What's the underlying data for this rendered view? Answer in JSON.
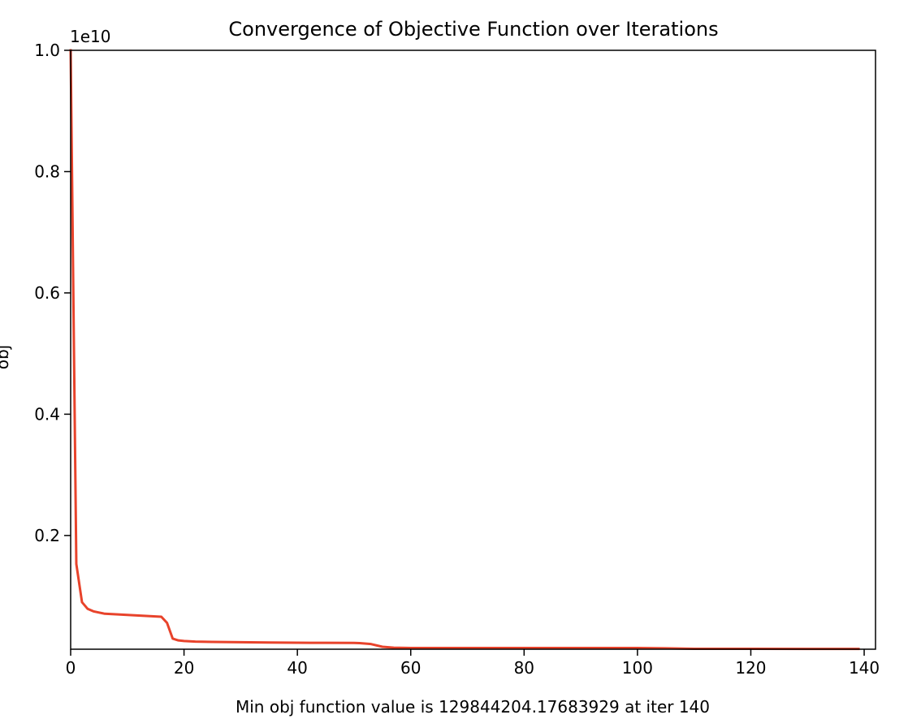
{
  "chart_data": {
    "type": "line",
    "title": "Convergence of Objective Function over Iterations",
    "xlabel": "Min obj function value is 129844204.17683929 at iter 140",
    "ylabel": "obj",
    "y_offset_label": "1e10",
    "xlim": [
      0,
      142
    ],
    "ylim": [
      0.0125,
      1.0
    ],
    "x_ticks": [
      0,
      20,
      40,
      60,
      80,
      100,
      120,
      140
    ],
    "x_tick_labels": [
      "0",
      "20",
      "40",
      "60",
      "80",
      "100",
      "120",
      "140"
    ],
    "y_ticks": [
      0.2,
      0.4,
      0.6,
      0.8,
      1.0
    ],
    "y_tick_labels": [
      "0.2",
      "0.4",
      "0.6",
      "0.8",
      "1.0"
    ],
    "grid": false,
    "series": [
      {
        "color": "#e8432b",
        "x": [
          0,
          1,
          2,
          3,
          4,
          5,
          6,
          8,
          10,
          12,
          14,
          16,
          17,
          18,
          19,
          20,
          22,
          25,
          30,
          35,
          40,
          45,
          50,
          51,
          53,
          55,
          57,
          60,
          70,
          80,
          90,
          100,
          105,
          110,
          120,
          130,
          139
        ],
        "y": [
          1.0,
          0.153,
          0.09,
          0.079,
          0.075,
          0.073,
          0.071,
          0.07,
          0.069,
          0.068,
          0.067,
          0.066,
          0.056,
          0.03,
          0.027,
          0.026,
          0.025,
          0.0245,
          0.024,
          0.0235,
          0.0232,
          0.023,
          0.0228,
          0.0225,
          0.021,
          0.0165,
          0.015,
          0.0145,
          0.0145,
          0.0145,
          0.0145,
          0.0145,
          0.014,
          0.0132,
          0.0131,
          0.013,
          0.013
        ]
      }
    ]
  }
}
